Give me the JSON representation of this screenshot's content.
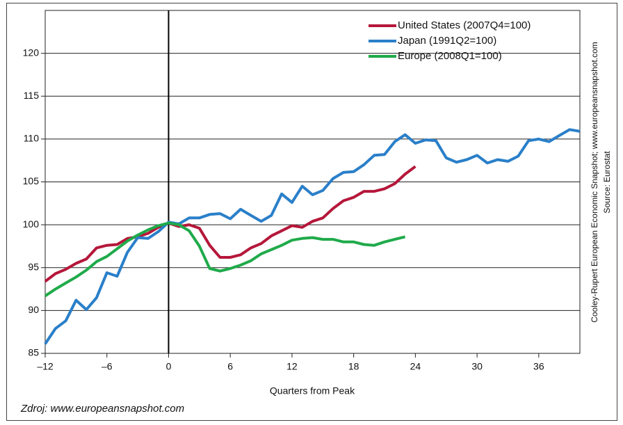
{
  "chart_data": {
    "type": "line",
    "xlabel": "Quarters from Peak",
    "side_note": "Cooley-Rupert European Economic Snapshot; www.europeansnapshot.com",
    "source": "Source: Eurostat",
    "footer": "Zdroj: www.europeansnapshot.com",
    "xlim": [
      -12,
      40
    ],
    "ylim": [
      85,
      125
    ],
    "xticks": [
      {
        "value": -12,
        "label": "–12"
      },
      {
        "value": -6,
        "label": "–6"
      },
      0,
      6,
      12,
      18,
      24,
      30,
      36
    ],
    "yticks": [
      85,
      90,
      95,
      100,
      105,
      110,
      115,
      120
    ],
    "grid": true,
    "legend": "upper right",
    "series": [
      {
        "name": "United States (2007Q4=100)",
        "color": "#b5173a",
        "x": [
          -12,
          -11,
          -10,
          -9,
          -8,
          -7,
          -6,
          -5,
          -4,
          -3,
          -2,
          -1,
          0,
          1,
          2,
          3,
          4,
          5,
          6,
          7,
          8,
          9,
          10,
          11,
          12,
          13,
          14,
          15,
          16,
          17,
          18,
          19,
          20,
          21,
          22,
          23,
          24
        ],
        "values": [
          93.4,
          94.3,
          94.8,
          95.5,
          96.0,
          97.3,
          97.6,
          97.7,
          98.4,
          98.6,
          99.0,
          99.7,
          100.2,
          99.8,
          100.0,
          99.6,
          97.6,
          96.2,
          96.2,
          96.5,
          97.3,
          97.8,
          98.7,
          99.3,
          99.9,
          99.7,
          100.4,
          100.8,
          101.9,
          102.8,
          103.2,
          103.9,
          103.9,
          104.2,
          104.8,
          105.9,
          106.8
        ]
      },
      {
        "name": "Japan (1991Q2=100)",
        "color": "#2a7fc9",
        "x": [
          -12,
          -11,
          -10,
          -9,
          -8,
          -7,
          -6,
          -5,
          -4,
          -3,
          -2,
          -1,
          0,
          1,
          2,
          3,
          4,
          5,
          6,
          7,
          8,
          9,
          10,
          11,
          12,
          13,
          14,
          15,
          16,
          17,
          18,
          19,
          20,
          21,
          22,
          23,
          24,
          25,
          26,
          27,
          28,
          29,
          30,
          31,
          32,
          33,
          34,
          35,
          36,
          37,
          38,
          39,
          40
        ],
        "values": [
          86.1,
          87.9,
          88.8,
          91.2,
          90.1,
          91.5,
          94.4,
          94.0,
          96.8,
          98.5,
          98.4,
          99.2,
          100.3,
          100.1,
          100.8,
          100.8,
          101.2,
          101.3,
          100.7,
          101.8,
          101.1,
          100.4,
          101.1,
          103.6,
          102.6,
          104.5,
          103.5,
          104.0,
          105.4,
          106.1,
          106.2,
          107.0,
          108.1,
          108.2,
          109.7,
          110.5,
          109.5,
          109.9,
          109.8,
          107.8,
          107.3,
          107.6,
          108.1,
          107.2,
          107.6,
          107.4,
          108.0,
          109.8,
          110.0,
          109.7,
          110.4,
          111.1,
          110.9
        ]
      },
      {
        "name": "Europe (2008Q1=100)",
        "color": "#1faa4a",
        "x": [
          -12,
          -11,
          -10,
          -9,
          -8,
          -7,
          -6,
          -5,
          -4,
          -3,
          -2,
          -1,
          0,
          1,
          2,
          3,
          4,
          5,
          6,
          7,
          8,
          9,
          10,
          11,
          12,
          13,
          14,
          15,
          16,
          17,
          18,
          19,
          20,
          21,
          22,
          23
        ],
        "values": [
          91.7,
          92.5,
          93.2,
          93.9,
          94.7,
          95.7,
          96.3,
          97.2,
          98.1,
          98.8,
          99.4,
          99.9,
          100.2,
          100.0,
          99.3,
          97.5,
          94.9,
          94.6,
          94.9,
          95.3,
          95.8,
          96.6,
          97.1,
          97.6,
          98.2,
          98.4,
          98.5,
          98.3,
          98.3,
          98.0,
          98.0,
          97.7,
          97.6,
          98.0,
          98.3,
          98.6
        ]
      }
    ]
  }
}
